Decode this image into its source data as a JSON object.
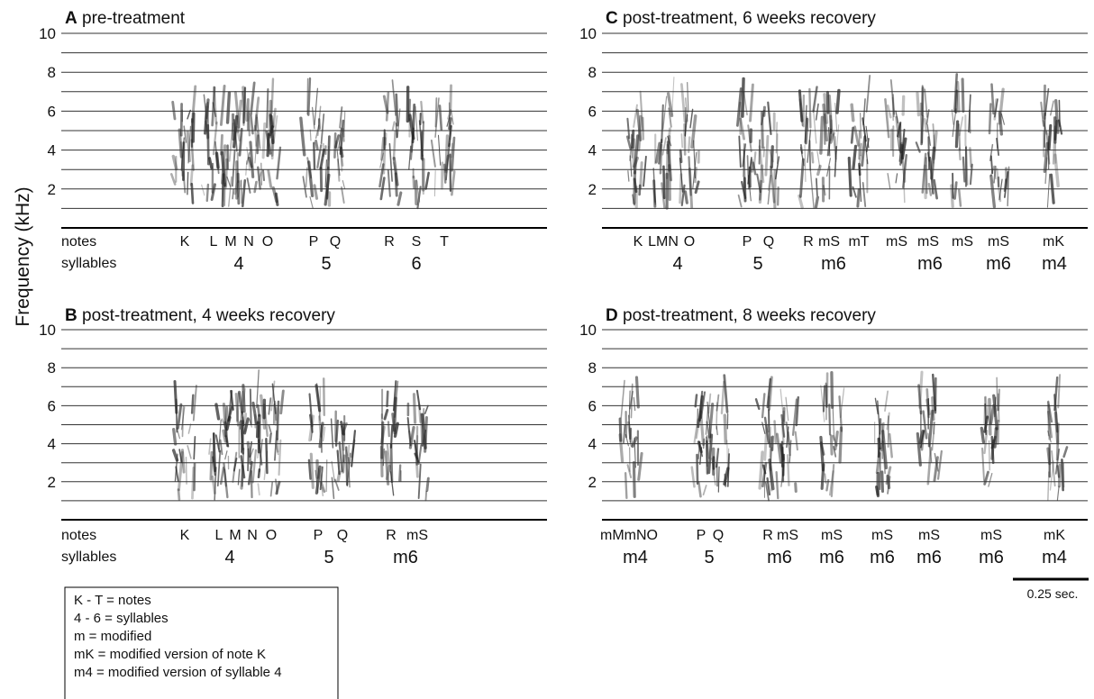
{
  "figure": {
    "y_axis_label": "Frequency (kHz)",
    "ylim": [
      0,
      10
    ],
    "yticks": [
      2,
      4,
      6,
      8,
      10
    ],
    "row_labels": {
      "notes": "notes",
      "syllables": "syllables"
    },
    "panels": [
      {
        "letter": "A",
        "title": "pre-treatment",
        "notes": [
          "K",
          "L",
          "M",
          "N",
          "O",
          "P",
          "Q",
          "R",
          "S",
          "T"
        ],
        "syllables": [
          "4",
          "5",
          "6"
        ]
      },
      {
        "letter": "B",
        "title": "post-treatment, 4 weeks recovery",
        "notes": [
          "K",
          "L",
          "M",
          "N",
          "O",
          "P",
          "Q",
          "R",
          "mS"
        ],
        "syllables": [
          "4",
          "5",
          "m6"
        ]
      },
      {
        "letter": "C",
        "title": "post-treatment, 6 weeks recovery",
        "notes": [
          "K",
          "LMN",
          "O",
          "P",
          "Q",
          "R",
          "mS",
          "mT",
          "mS",
          "mS",
          "mS",
          "mS",
          "mK"
        ],
        "syllables": [
          "4",
          "5",
          "m6",
          "m6",
          "m6",
          "m4"
        ]
      },
      {
        "letter": "D",
        "title": "post-treatment, 8 weeks recovery",
        "notes": [
          "mMmNO",
          "P",
          "Q",
          "R",
          "mS",
          "mS",
          "mS",
          "mS",
          "mS",
          "mK"
        ],
        "syllables": [
          "m4",
          "5",
          "m6",
          "m6",
          "m6",
          "m6",
          "m6",
          "m4"
        ]
      }
    ],
    "scale_bar": "0.25 sec.",
    "legend": [
      "K - T = notes",
      "4 - 6 = syllables",
      "m = modified",
      "mK = modified version of note K",
      "m4 = modified version of syllable 4"
    ]
  }
}
